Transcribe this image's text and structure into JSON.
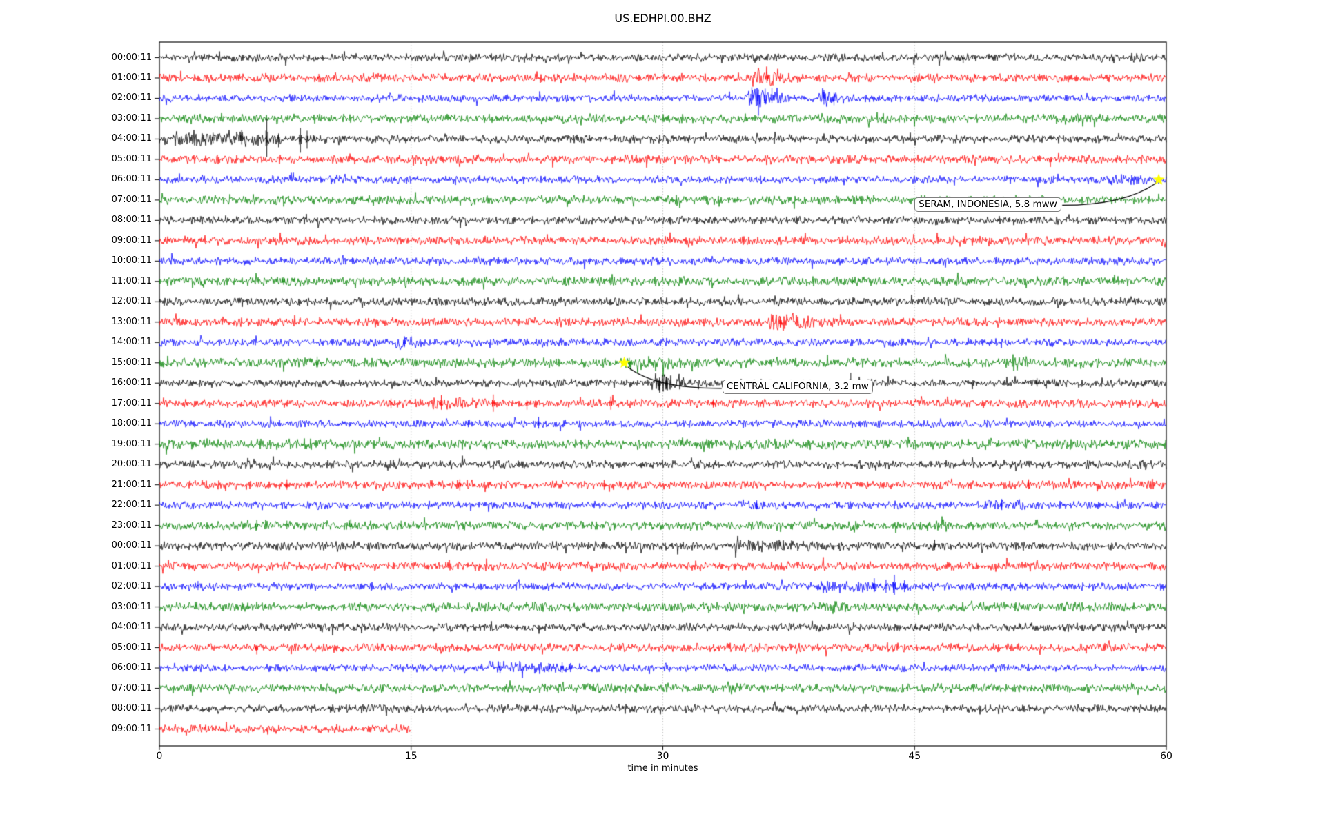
{
  "figure": {
    "background": "#ffffff",
    "title": "US.EDHPI.00.BHZ"
  },
  "chart_data": {
    "type": "line",
    "subtype": "helicorder-dayplot",
    "title": "US.EDHPI.00.BHZ",
    "xlabel": "time in minutes",
    "ylabel": "",
    "xlim": [
      0,
      60
    ],
    "xticks": [
      0,
      15,
      30,
      45,
      60
    ],
    "grid": true,
    "grid_lines_minutes": [
      15,
      30,
      45
    ],
    "legend": "none",
    "colors": {
      "cycle": [
        "#000000",
        "#ff0000",
        "#0000ff",
        "#008000"
      ],
      "star": "#ffff00",
      "grid": "#b0b0b0",
      "frame": "#000000",
      "annotation_border": "#7f7f7f",
      "annotation_bg": "#ffffff"
    },
    "rows": [
      {
        "label": "00:00:11",
        "color": "black",
        "end_min": 60,
        "noise": 1.0,
        "bursts": [],
        "spikes": [
          [
            47.9,
            4,
            8
          ]
        ]
      },
      {
        "label": "01:00:11",
        "color": "red",
        "end_min": 60,
        "noise": 1.05,
        "bursts": [
          [
            35.2,
            38.4,
            2.6
          ]
        ],
        "spikes": [
          [
            9.5,
            6,
            6
          ],
          [
            36.2,
            8,
            7
          ]
        ]
      },
      {
        "label": "02:00:11",
        "color": "blue",
        "end_min": 60,
        "noise": 0.95,
        "bursts": [
          [
            34.9,
            37.4,
            3.0
          ],
          [
            39.3,
            41.0,
            2.4
          ]
        ],
        "spikes": [
          [
            35.3,
            16,
            8
          ],
          [
            35.7,
            13,
            25
          ],
          [
            36.1,
            14,
            9
          ],
          [
            36.5,
            15,
            7
          ],
          [
            39.6,
            12,
            9
          ],
          [
            40.2,
            8,
            10
          ]
        ]
      },
      {
        "label": "03:00:11",
        "color": "green",
        "end_min": 60,
        "noise": 1.1,
        "bursts": [],
        "spikes": []
      },
      {
        "label": "04:00:11",
        "color": "black",
        "end_min": 60,
        "noise": 1.0,
        "bursts": [
          [
            0.3,
            9.5,
            2.2
          ]
        ],
        "spikes": [
          [
            3.2,
            9,
            6
          ],
          [
            4.9,
            13,
            8
          ],
          [
            6.4,
            30,
            26
          ],
          [
            7.1,
            8,
            12
          ],
          [
            8.4,
            16,
            20
          ],
          [
            8.8,
            12,
            14
          ]
        ]
      },
      {
        "label": "05:00:11",
        "color": "red",
        "end_min": 60,
        "noise": 1.05,
        "bursts": [],
        "spikes": [
          [
            53.1,
            3,
            11
          ]
        ]
      },
      {
        "label": "06:00:11",
        "color": "blue",
        "end_min": 60,
        "noise": 0.95,
        "bursts": [
          [
            56.5,
            60,
            1.4
          ]
        ],
        "spikes": []
      },
      {
        "label": "07:00:11",
        "color": "green",
        "end_min": 60,
        "noise": 1.1,
        "bursts": [],
        "spikes": []
      },
      {
        "label": "08:00:11",
        "color": "black",
        "end_min": 60,
        "noise": 1.0,
        "bursts": [],
        "spikes": []
      },
      {
        "label": "09:00:11",
        "color": "red",
        "end_min": 60,
        "noise": 1.05,
        "bursts": [],
        "spikes": []
      },
      {
        "label": "10:00:11",
        "color": "blue",
        "end_min": 60,
        "noise": 0.95,
        "bursts": [],
        "spikes": [
          [
            11.5,
            5,
            4
          ]
        ]
      },
      {
        "label": "11:00:11",
        "color": "green",
        "end_min": 60,
        "noise": 1.1,
        "bursts": [],
        "spikes": [
          [
            7.4,
            6,
            5
          ],
          [
            41.3,
            6,
            4
          ]
        ]
      },
      {
        "label": "12:00:11",
        "color": "black",
        "end_min": 60,
        "noise": 1.0,
        "bursts": [],
        "spikes": []
      },
      {
        "label": "13:00:11",
        "color": "red",
        "end_min": 60,
        "noise": 1.05,
        "bursts": [
          [
            36.3,
            39.3,
            2.4
          ]
        ],
        "spikes": [
          [
            37.0,
            8,
            7
          ]
        ]
      },
      {
        "label": "14:00:11",
        "color": "blue",
        "end_min": 60,
        "noise": 0.95,
        "bursts": [
          [
            14.1,
            15.7,
            2.4
          ]
        ],
        "spikes": [
          [
            14.6,
            9,
            7
          ]
        ]
      },
      {
        "label": "15:00:11",
        "color": "green",
        "end_min": 60,
        "noise": 1.15,
        "bursts": [
          [
            27.6,
            31.5,
            1.9
          ],
          [
            50.7,
            51.9,
            1.9
          ]
        ],
        "spikes": [
          [
            9.4,
            9,
            8
          ],
          [
            28.0,
            7,
            6
          ]
        ]
      },
      {
        "label": "16:00:11",
        "color": "black",
        "end_min": 60,
        "noise": 1.0,
        "bursts": [
          [
            29.3,
            32.0,
            2.3
          ]
        ],
        "spikes": [
          [
            29.8,
            8,
            10
          ],
          [
            30.2,
            9,
            8
          ],
          [
            41.2,
            15,
            4
          ],
          [
            52.3,
            7,
            5
          ]
        ]
      },
      {
        "label": "17:00:11",
        "color": "red",
        "end_min": 60,
        "noise": 1.05,
        "bursts": [
          [
            16.3,
            20.4,
            1.7
          ]
        ],
        "spikes": [
          [
            13.8,
            7,
            7
          ],
          [
            16.8,
            12,
            9
          ],
          [
            19.9,
            13,
            12
          ],
          [
            21.9,
            5,
            9
          ],
          [
            26.9,
            10,
            9
          ],
          [
            33.0,
            6,
            6
          ]
        ]
      },
      {
        "label": "18:00:11",
        "color": "blue",
        "end_min": 60,
        "noise": 0.95,
        "bursts": [],
        "spikes": [
          [
            18.4,
            5,
            5
          ],
          [
            22.6,
            10,
            7
          ]
        ]
      },
      {
        "label": "19:00:11",
        "color": "green",
        "end_min": 60,
        "noise": 1.25,
        "bursts": [],
        "spikes": []
      },
      {
        "label": "20:00:11",
        "color": "black",
        "end_min": 60,
        "noise": 1.0,
        "bursts": [],
        "spikes": []
      },
      {
        "label": "21:00:11",
        "color": "red",
        "end_min": 60,
        "noise": 1.05,
        "bursts": [],
        "spikes": [
          [
            7.6,
            8,
            7
          ],
          [
            17.9,
            8,
            8
          ],
          [
            26.5,
            7,
            7
          ],
          [
            51.8,
            8,
            6
          ]
        ]
      },
      {
        "label": "22:00:11",
        "color": "blue",
        "end_min": 60,
        "noise": 0.95,
        "bursts": [
          [
            49.2,
            51.9,
            1.8
          ]
        ],
        "spikes": [
          [
            35.6,
            7,
            6
          ],
          [
            50.2,
            9,
            7
          ]
        ]
      },
      {
        "label": "23:00:11",
        "color": "green",
        "end_min": 60,
        "noise": 1.1,
        "bursts": [],
        "spikes": [
          [
            5.8,
            8,
            6
          ],
          [
            7.6,
            7,
            5
          ],
          [
            11.4,
            9,
            6
          ],
          [
            14.4,
            7,
            5
          ]
        ]
      },
      {
        "label": "00:00:11",
        "color": "black",
        "end_min": 60,
        "noise": 1.05,
        "bursts": [
          [
            33.8,
            41.2,
            1.5
          ]
        ],
        "spikes": [
          [
            46.2,
            9,
            6
          ]
        ]
      },
      {
        "label": "01:00:11",
        "color": "red",
        "end_min": 60,
        "noise": 1.05,
        "bursts": [],
        "spikes": []
      },
      {
        "label": "02:00:11",
        "color": "blue",
        "end_min": 60,
        "noise": 0.95,
        "bursts": [
          [
            39.3,
            45.2,
            1.8
          ]
        ],
        "spikes": [
          [
            2.3,
            8,
            5
          ],
          [
            42.6,
            12,
            8
          ],
          [
            43.3,
            10,
            9
          ],
          [
            43.8,
            17,
            12
          ],
          [
            44.4,
            9,
            8
          ]
        ]
      },
      {
        "label": "03:00:11",
        "color": "green",
        "end_min": 60,
        "noise": 1.15,
        "bursts": [
          [
            39.5,
            41.5,
            1.5
          ]
        ],
        "spikes": []
      },
      {
        "label": "04:00:11",
        "color": "black",
        "end_min": 60,
        "noise": 1.0,
        "bursts": [],
        "spikes": []
      },
      {
        "label": "05:00:11",
        "color": "red",
        "end_min": 60,
        "noise": 1.05,
        "bursts": [],
        "spikes": [
          [
            5.8,
            3,
            10
          ]
        ]
      },
      {
        "label": "06:00:11",
        "color": "blue",
        "end_min": 60,
        "noise": 0.95,
        "bursts": [
          [
            19.5,
            25.2,
            1.9
          ]
        ],
        "spikes": [
          [
            20.3,
            8,
            8
          ],
          [
            23.2,
            7,
            6
          ],
          [
            24.0,
            8,
            7
          ],
          [
            24.5,
            7,
            6
          ]
        ]
      },
      {
        "label": "07:00:11",
        "color": "green",
        "end_min": 60,
        "noise": 1.1,
        "bursts": [],
        "spikes": []
      },
      {
        "label": "08:00:11",
        "color": "black",
        "end_min": 60,
        "noise": 1.0,
        "bursts": [],
        "spikes": []
      },
      {
        "label": "09:00:11",
        "color": "red",
        "end_min": 15,
        "noise": 1.05,
        "bursts": [],
        "spikes": []
      }
    ],
    "annotations": [
      {
        "text": "SERAM, INDONESIA, 5.8 mww",
        "star_row": 6,
        "star_min": 59.55,
        "box_min": 45.0,
        "box_row": 7,
        "box_dy": -4,
        "attach": "right",
        "ctrl_dx": 22,
        "ctrl_dy": 16
      },
      {
        "text": "CENTRAL CALIFORNIA, 3.2 mw",
        "star_row": 15,
        "star_min": 27.7,
        "box_min": 33.55,
        "box_row": 16,
        "box_dy": -5,
        "attach": "left",
        "ctrl_dx": -28,
        "ctrl_dy": 16
      }
    ]
  }
}
